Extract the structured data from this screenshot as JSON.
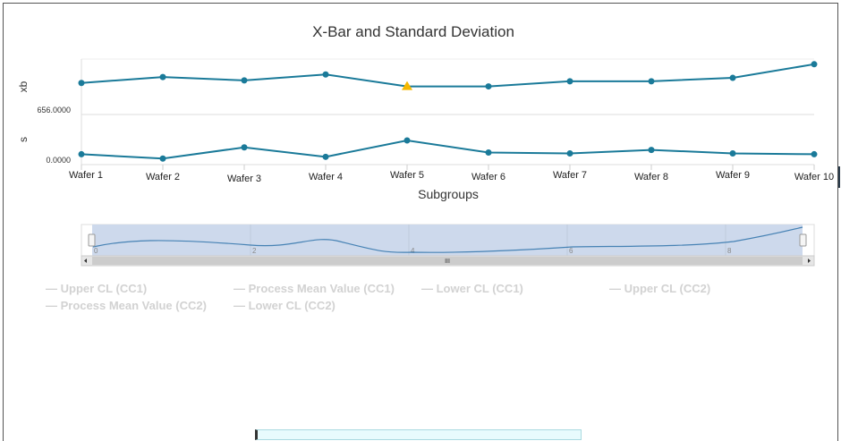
{
  "chart_data": {
    "type": "line",
    "title": "X-Bar and Standard Deviation",
    "xlabel": "Subgroups",
    "categories": [
      "Wafer 1",
      "Wafer 2",
      "Wafer 3",
      "Wafer 4",
      "Wafer 5",
      "Wafer 6",
      "Wafer 7",
      "Wafer 8",
      "Wafer 9",
      "Wafer 10"
    ],
    "panels": [
      {
        "name": "xb",
        "ylabel": "xb",
        "tick_label": "656.0000",
        "ylim": [
          656,
          662.3
        ],
        "values": [
          659.7,
          660.4,
          660.0,
          660.7,
          659.3,
          659.3,
          659.9,
          659.9,
          660.3,
          661.9
        ],
        "flagged_index": 4,
        "color": "#1a7a99",
        "flag_color": "#f5b800"
      },
      {
        "name": "s",
        "ylabel": "s",
        "tick_label": "0.0000",
        "ylim": [
          0,
          2.8
        ],
        "values": [
          0.6,
          0.35,
          1.0,
          0.45,
          1.4,
          0.7,
          0.65,
          0.85,
          0.65,
          0.6
        ],
        "color": "#1a7a99"
      }
    ],
    "navigator": {
      "tick_labels": [
        "0",
        "2",
        "4",
        "6",
        "8"
      ],
      "handle_label": "III"
    },
    "legend": [
      "Upper CL (CC1)",
      "Process Mean Value (CC1)",
      "Lower CL (CC1)",
      "Upper CL (CC2)",
      "Process Mean Value (CC2)",
      "Lower CL (CC2)"
    ],
    "legend_placement": "bottom"
  }
}
